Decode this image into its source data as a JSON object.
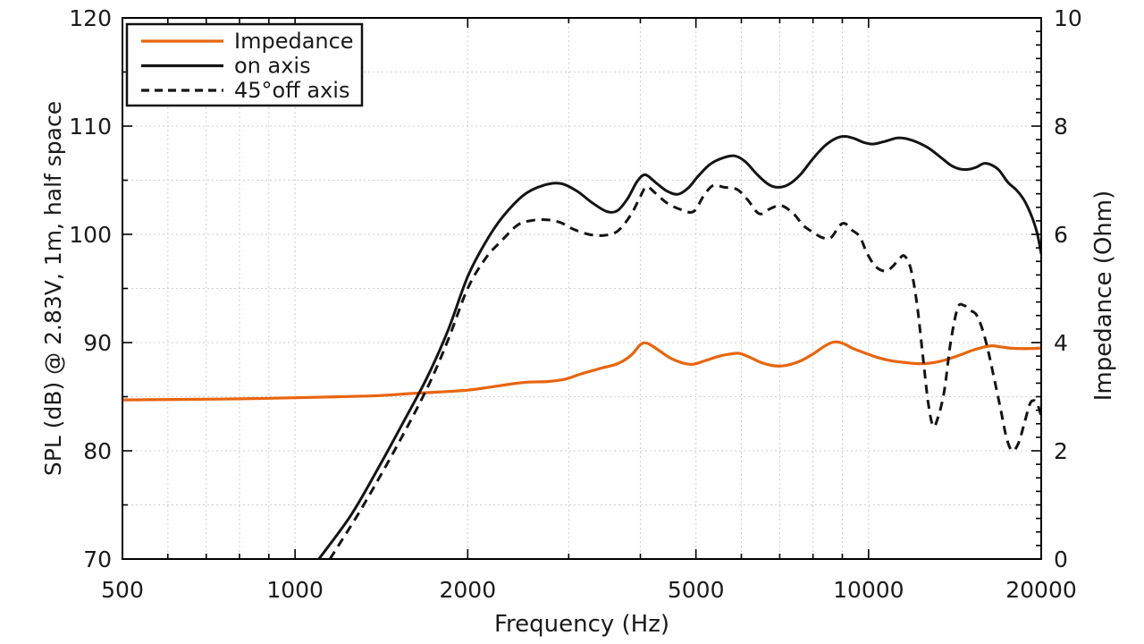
{
  "chart_data": {
    "type": "line",
    "title": "",
    "grid": true,
    "background": "#ffffff",
    "x_axis": {
      "label": "Frequency (Hz)",
      "scale": "log",
      "min": 500,
      "max": 20000,
      "major_ticks": [
        {
          "v": 500,
          "label": "500"
        },
        {
          "v": 1000,
          "label": "1000"
        },
        {
          "v": 2000,
          "label": "2000"
        },
        {
          "v": 5000,
          "label": "5000"
        },
        {
          "v": 10000,
          "label": "10000"
        },
        {
          "v": 20000,
          "label": "20000"
        }
      ],
      "minor_ticks": [
        600,
        700,
        800,
        900,
        3000,
        4000,
        6000,
        7000,
        8000,
        9000
      ]
    },
    "y_left": {
      "label": "SPL (dB) @ 2.83V, 1m, half space",
      "min": 70,
      "max": 120,
      "major_ticks": [
        {
          "v": 70,
          "label": "70"
        },
        {
          "v": 80,
          "label": "80"
        },
        {
          "v": 90,
          "label": "90"
        },
        {
          "v": 100,
          "label": "100"
        },
        {
          "v": 110,
          "label": "110"
        },
        {
          "v": 120,
          "label": "120"
        }
      ],
      "minor_ticks": [
        75,
        85,
        95,
        105,
        115
      ],
      "gridlines": [
        75,
        80,
        85,
        90,
        95,
        100,
        105,
        110,
        115
      ]
    },
    "y_right": {
      "label": "Impedance (Ohm)",
      "min": 0,
      "max": 10,
      "major_ticks": [
        {
          "v": 0,
          "label": "0"
        },
        {
          "v": 2,
          "label": "2"
        },
        {
          "v": 4,
          "label": "4"
        },
        {
          "v": 6,
          "label": "6"
        },
        {
          "v": 8,
          "label": "8"
        },
        {
          "v": 10,
          "label": "10"
        }
      ],
      "minor_tick_step": 0.25
    },
    "legend": {
      "position": "top-left",
      "entries": [
        {
          "label": "Impedance",
          "color": "#e8650f",
          "style": "solid"
        },
        {
          "label": "on axis",
          "color": "#141414",
          "style": "solid"
        },
        {
          "label": "45°off axis",
          "color": "#141414",
          "style": "dashed"
        }
      ]
    },
    "colors": {
      "impedance": "#e8650f",
      "spl": "#141414",
      "grid": "#cfcfcf",
      "frame": "#000000"
    },
    "series": [
      {
        "name": "Impedance",
        "axis": "right",
        "unit": "Ohm",
        "color": "#e8650f",
        "style": "solid",
        "points": [
          [
            500,
            2.94
          ],
          [
            650,
            2.95
          ],
          [
            800,
            2.96
          ],
          [
            1000,
            2.98
          ],
          [
            1200,
            3.0
          ],
          [
            1400,
            3.02
          ],
          [
            1600,
            3.06
          ],
          [
            1800,
            3.09
          ],
          [
            2000,
            3.12
          ],
          [
            2200,
            3.18
          ],
          [
            2400,
            3.24
          ],
          [
            2550,
            3.27
          ],
          [
            2750,
            3.28
          ],
          [
            2950,
            3.32
          ],
          [
            3150,
            3.42
          ],
          [
            3400,
            3.52
          ],
          [
            3650,
            3.61
          ],
          [
            3850,
            3.76
          ],
          [
            4000,
            3.96
          ],
          [
            4100,
            3.99
          ],
          [
            4250,
            3.9
          ],
          [
            4500,
            3.72
          ],
          [
            4750,
            3.62
          ],
          [
            4950,
            3.6
          ],
          [
            5200,
            3.67
          ],
          [
            5500,
            3.75
          ],
          [
            5750,
            3.79
          ],
          [
            5950,
            3.8
          ],
          [
            6200,
            3.73
          ],
          [
            6500,
            3.63
          ],
          [
            6850,
            3.57
          ],
          [
            7200,
            3.58
          ],
          [
            7600,
            3.66
          ],
          [
            8000,
            3.79
          ],
          [
            8400,
            3.94
          ],
          [
            8700,
            4.01
          ],
          [
            9000,
            3.99
          ],
          [
            9400,
            3.89
          ],
          [
            9900,
            3.8
          ],
          [
            10400,
            3.72
          ],
          [
            11000,
            3.66
          ],
          [
            11600,
            3.63
          ],
          [
            12200,
            3.61
          ],
          [
            12800,
            3.62
          ],
          [
            13400,
            3.66
          ],
          [
            14000,
            3.72
          ],
          [
            14600,
            3.79
          ],
          [
            15200,
            3.86
          ],
          [
            15800,
            3.91
          ],
          [
            16400,
            3.94
          ],
          [
            17000,
            3.92
          ],
          [
            17600,
            3.9
          ],
          [
            18400,
            3.89
          ],
          [
            19200,
            3.89
          ],
          [
            20000,
            3.9
          ]
        ]
      },
      {
        "name": "on axis",
        "axis": "left",
        "unit": "dB",
        "color": "#141414",
        "style": "solid",
        "points": [
          [
            1100,
            70
          ],
          [
            1250,
            74
          ],
          [
            1400,
            78.5
          ],
          [
            1550,
            82.8
          ],
          [
            1700,
            86.8
          ],
          [
            1850,
            91.2
          ],
          [
            2000,
            96.1
          ],
          [
            2150,
            99.3
          ],
          [
            2300,
            101.6
          ],
          [
            2500,
            103.6
          ],
          [
            2700,
            104.5
          ],
          [
            2900,
            104.7
          ],
          [
            3100,
            104.0
          ],
          [
            3300,
            102.9
          ],
          [
            3500,
            102.1
          ],
          [
            3650,
            102.2
          ],
          [
            3800,
            103.3
          ],
          [
            3950,
            104.9
          ],
          [
            4080,
            105.5
          ],
          [
            4250,
            104.8
          ],
          [
            4450,
            104.0
          ],
          [
            4650,
            103.7
          ],
          [
            4850,
            104.3
          ],
          [
            5050,
            105.4
          ],
          [
            5300,
            106.5
          ],
          [
            5600,
            107.1
          ],
          [
            5850,
            107.25
          ],
          [
            6100,
            106.7
          ],
          [
            6400,
            105.5
          ],
          [
            6700,
            104.6
          ],
          [
            6950,
            104.35
          ],
          [
            7250,
            104.6
          ],
          [
            7600,
            105.5
          ],
          [
            8000,
            107.0
          ],
          [
            8400,
            108.2
          ],
          [
            8800,
            108.9
          ],
          [
            9100,
            109.05
          ],
          [
            9450,
            108.85
          ],
          [
            9800,
            108.5
          ],
          [
            10200,
            108.35
          ],
          [
            10700,
            108.6
          ],
          [
            11200,
            108.9
          ],
          [
            11600,
            108.85
          ],
          [
            12100,
            108.55
          ],
          [
            12700,
            108.0
          ],
          [
            13300,
            107.2
          ],
          [
            13900,
            106.4
          ],
          [
            14400,
            106.05
          ],
          [
            14900,
            106.0
          ],
          [
            15400,
            106.2
          ],
          [
            15900,
            106.55
          ],
          [
            16400,
            106.4
          ],
          [
            16900,
            105.9
          ],
          [
            17500,
            104.8
          ],
          [
            18100,
            104.1
          ],
          [
            18700,
            103.1
          ],
          [
            19300,
            101.5
          ],
          [
            19700,
            100.0
          ],
          [
            20000,
            98.2
          ]
        ]
      },
      {
        "name": "45°off axis",
        "axis": "left",
        "unit": "dB",
        "color": "#141414",
        "style": "dashed",
        "points": [
          [
            1150,
            70
          ],
          [
            1300,
            74.5
          ],
          [
            1500,
            80.3
          ],
          [
            1700,
            85.8
          ],
          [
            1850,
            90.3
          ],
          [
            2000,
            95.0
          ],
          [
            2150,
            97.8
          ],
          [
            2300,
            99.5
          ],
          [
            2450,
            100.9
          ],
          [
            2600,
            101.3
          ],
          [
            2750,
            101.35
          ],
          [
            2900,
            101.1
          ],
          [
            3050,
            100.5
          ],
          [
            3250,
            100.0
          ],
          [
            3450,
            99.9
          ],
          [
            3650,
            100.3
          ],
          [
            3850,
            101.8
          ],
          [
            4000,
            103.5
          ],
          [
            4100,
            104.4
          ],
          [
            4250,
            103.8
          ],
          [
            4450,
            102.9
          ],
          [
            4700,
            102.3
          ],
          [
            4950,
            102.1
          ],
          [
            5150,
            103.5
          ],
          [
            5350,
            104.5
          ],
          [
            5600,
            104.35
          ],
          [
            5900,
            104.15
          ],
          [
            6150,
            103.2
          ],
          [
            6450,
            101.9
          ],
          [
            6750,
            102.4
          ],
          [
            7050,
            102.65
          ],
          [
            7400,
            101.9
          ],
          [
            7700,
            100.8
          ],
          [
            8000,
            100.2
          ],
          [
            8300,
            99.7
          ],
          [
            8600,
            99.7
          ],
          [
            8900,
            100.8
          ],
          [
            9100,
            101.0
          ],
          [
            9350,
            100.4
          ],
          [
            9650,
            99.8
          ],
          [
            9950,
            98.2
          ],
          [
            10300,
            97.0
          ],
          [
            10700,
            96.6
          ],
          [
            11000,
            97.0
          ],
          [
            11300,
            97.7
          ],
          [
            11550,
            98.0
          ],
          [
            11850,
            96.8
          ],
          [
            12150,
            93.5
          ],
          [
            12450,
            88.5
          ],
          [
            12700,
            84.5
          ],
          [
            12950,
            82.3
          ],
          [
            13200,
            83.0
          ],
          [
            13550,
            85.5
          ],
          [
            13900,
            90.0
          ],
          [
            14300,
            93.2
          ],
          [
            14650,
            93.45
          ],
          [
            15000,
            93.0
          ],
          [
            15400,
            92.6
          ],
          [
            15800,
            91.2
          ],
          [
            16200,
            89.0
          ],
          [
            16600,
            86.4
          ],
          [
            17000,
            83.8
          ],
          [
            17400,
            81.2
          ],
          [
            17800,
            80.0
          ],
          [
            18250,
            80.7
          ],
          [
            18700,
            82.6
          ],
          [
            19100,
            84.3
          ],
          [
            19400,
            84.65
          ],
          [
            19700,
            84.3
          ],
          [
            20000,
            83.2
          ]
        ]
      }
    ]
  }
}
